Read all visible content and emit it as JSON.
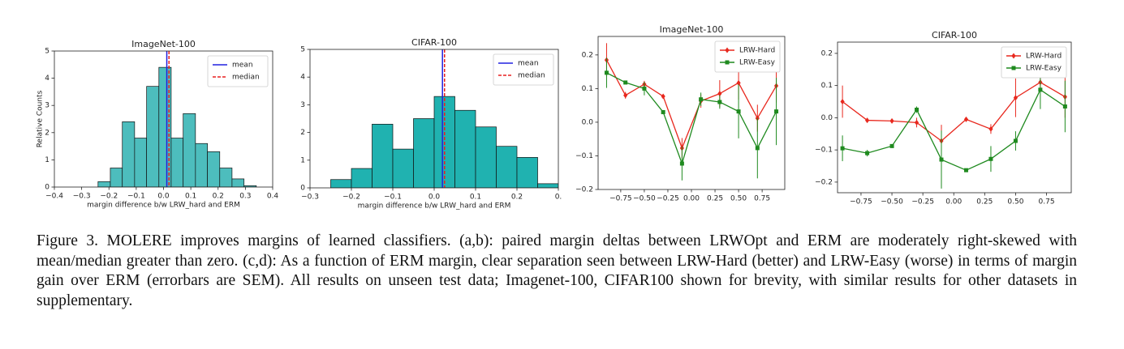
{
  "chart_data": [
    {
      "type": "histogram",
      "title": "ImageNet-100",
      "xlabel": "margin difference b/w LRW_hard and ERM",
      "ylabel": "Relative Counts",
      "bins": [
        -0.24,
        -0.195,
        -0.151,
        -0.106,
        -0.062,
        -0.017,
        0.028,
        0.072,
        0.117,
        0.161,
        0.206,
        0.251,
        0.295,
        0.34
      ],
      "counts": [
        0.2,
        0.7,
        2.4,
        1.8,
        3.7,
        4.4,
        1.8,
        2.7,
        1.6,
        1.3,
        0.7,
        0.3,
        0.05
      ],
      "color": "#4dbdbd",
      "lines": [
        {
          "name": "mean",
          "value": 0.012,
          "color": "#2020e0",
          "dash": "solid"
        },
        {
          "name": "median",
          "value": 0.02,
          "color": "#e82020",
          "dash": "dashed"
        }
      ],
      "xlim": [
        -0.4,
        0.4
      ],
      "xticks": [
        {
          "value": -0.4,
          "label": "−0.4"
        },
        {
          "value": -0.3,
          "label": "−0.3"
        },
        {
          "value": -0.2,
          "label": "−0.2"
        },
        {
          "value": -0.1,
          "label": "−0.1"
        },
        {
          "value": 0,
          "label": "0.0"
        },
        0.1,
        0.2,
        0.3,
        0.4
      ],
      "ylim": [
        0,
        5
      ],
      "yticks": [
        0,
        1,
        2,
        3,
        4,
        5
      ],
      "legend": "upper right"
    },
    {
      "type": "histogram",
      "title": "CIFAR-100",
      "xlabel": "margin difference b/w LRW_hard and ERM",
      "bins": [
        -0.25,
        -0.2,
        -0.15,
        -0.1,
        -0.05,
        0.0,
        0.05,
        0.1,
        0.15,
        0.2,
        0.25,
        0.3
      ],
      "counts": [
        0.3,
        0.7,
        2.3,
        1.4,
        2.5,
        3.3,
        2.8,
        2.2,
        1.5,
        1.1,
        0.15
      ],
      "color": "#20b2b0",
      "lines": [
        {
          "name": "mean",
          "value": 0.02,
          "color": "#2020e0",
          "dash": "solid"
        },
        {
          "name": "median",
          "value": 0.025,
          "color": "#e82020",
          "dash": "dashed"
        }
      ],
      "xlim": [
        -0.3,
        0.3
      ],
      "xticks": [
        {
          "value": -0.3,
          "label": "−0.3"
        },
        {
          "value": -0.2,
          "label": "−0.2"
        },
        {
          "value": -0.1,
          "label": "−0.1"
        },
        {
          "value": 0,
          "label": "0.0"
        },
        0.1,
        0.2,
        {
          "value": 0.3,
          "label": "0."
        }
      ],
      "ylim": [
        0,
        5
      ],
      "yticks": [
        0,
        1,
        2,
        3,
        4,
        5
      ],
      "legend": "upper right"
    },
    {
      "type": "errorbar",
      "title": "ImageNet-100",
      "x": [
        -0.9,
        -0.7,
        -0.5,
        -0.3,
        -0.1,
        0.1,
        0.3,
        0.5,
        0.7,
        0.9
      ],
      "series": [
        {
          "name": "LRW-Hard",
          "color": "#e8281e",
          "marker": "diamond",
          "values": [
            0.185,
            0.08,
            0.113,
            0.077,
            -0.077,
            0.063,
            0.085,
            0.117,
            0.012,
            0.108
          ],
          "errors": [
            0.05,
            0.01,
            0.01,
            0.005,
            0.03,
            0.02,
            0.04,
            0.05,
            0.04,
            0.05
          ]
        },
        {
          "name": "LRW-Easy",
          "color": "#1f8a1f",
          "marker": "square",
          "values": [
            0.147,
            0.118,
            0.1,
            0.03,
            -0.123,
            0.068,
            0.06,
            0.032,
            -0.077,
            0.032
          ],
          "errors": [
            0.045,
            0.005,
            0.02,
            0.005,
            0.05,
            0.02,
            0.02,
            0.08,
            0.09,
            0.1
          ]
        }
      ],
      "xlim": [
        -0.99,
        0.99
      ],
      "xticks": [
        {
          "value": -0.75,
          "label": "−0.75"
        },
        {
          "value": -0.5,
          "label": "−0.50"
        },
        {
          "value": -0.25,
          "label": "−0.25"
        },
        {
          "value": 0,
          "label": "0.00"
        },
        0.25,
        {
          "value": 0.5,
          "label": "0.50"
        },
        0.75
      ],
      "ylim": [
        -0.2,
        0.255
      ],
      "yticks": [
        {
          "value": -0.2,
          "label": "−0.2"
        },
        {
          "value": -0.1,
          "label": "−0.1"
        },
        {
          "value": 0,
          "label": "0.0"
        },
        0.1,
        0.2
      ],
      "legend": "upper right"
    },
    {
      "type": "errorbar",
      "title": "CIFAR-100",
      "x": [
        -0.9,
        -0.7,
        -0.5,
        -0.3,
        -0.1,
        0.1,
        0.3,
        0.5,
        0.7,
        0.9
      ],
      "series": [
        {
          "name": "LRW-Hard",
          "color": "#e8281e",
          "marker": "diamond",
          "values": [
            0.05,
            -0.008,
            -0.01,
            -0.015,
            -0.072,
            -0.005,
            -0.035,
            0.062,
            0.11,
            0.065
          ],
          "errors": [
            0.05,
            0.005,
            0.005,
            0.015,
            0.05,
            0.005,
            0.015,
            0.06,
            0.02,
            0.065
          ]
        },
        {
          "name": "LRW-Easy",
          "color": "#1f8a1f",
          "marker": "square",
          "values": [
            -0.095,
            -0.11,
            -0.088,
            0.025,
            -0.13,
            -0.163,
            -0.128,
            -0.072,
            0.087,
            0.035
          ],
          "errors": [
            0.04,
            0.01,
            0.005,
            0.01,
            0.09,
            0.005,
            0.04,
            0.03,
            0.06,
            0.08
          ]
        }
      ],
      "xlim": [
        -0.94,
        0.95
      ],
      "xticks": [
        {
          "value": -0.75,
          "label": "−0.75"
        },
        {
          "value": -0.5,
          "label": "−0.50"
        },
        {
          "value": -0.25,
          "label": "−0.25"
        },
        {
          "value": 0,
          "label": "0.00"
        },
        0.25,
        {
          "value": 0.5,
          "label": "0.50"
        },
        0.75
      ],
      "ylim": [
        -0.233,
        0.235
      ],
      "yticks": [
        {
          "value": -0.2,
          "label": "−0.2"
        },
        {
          "value": -0.1,
          "label": "−0.1"
        },
        {
          "value": 0,
          "label": "0.0"
        },
        0.1,
        0.2
      ],
      "legend": "upper right"
    }
  ],
  "caption": "Figure 3. MOLERE improves margins of learned classifiers. (a,b): paired margin deltas between LRWOpt and ERM are moderately right-skewed with mean/median greater than zero. (c,d): As a function of ERM margin, clear separation seen between LRW-Hard (better) and LRW-Easy (worse) in terms of margin gain over ERM (errorbars are SEM). All results on unseen test data; Imagenet-100, CIFAR100 shown for brevity, with similar results for other datasets in supplementary."
}
